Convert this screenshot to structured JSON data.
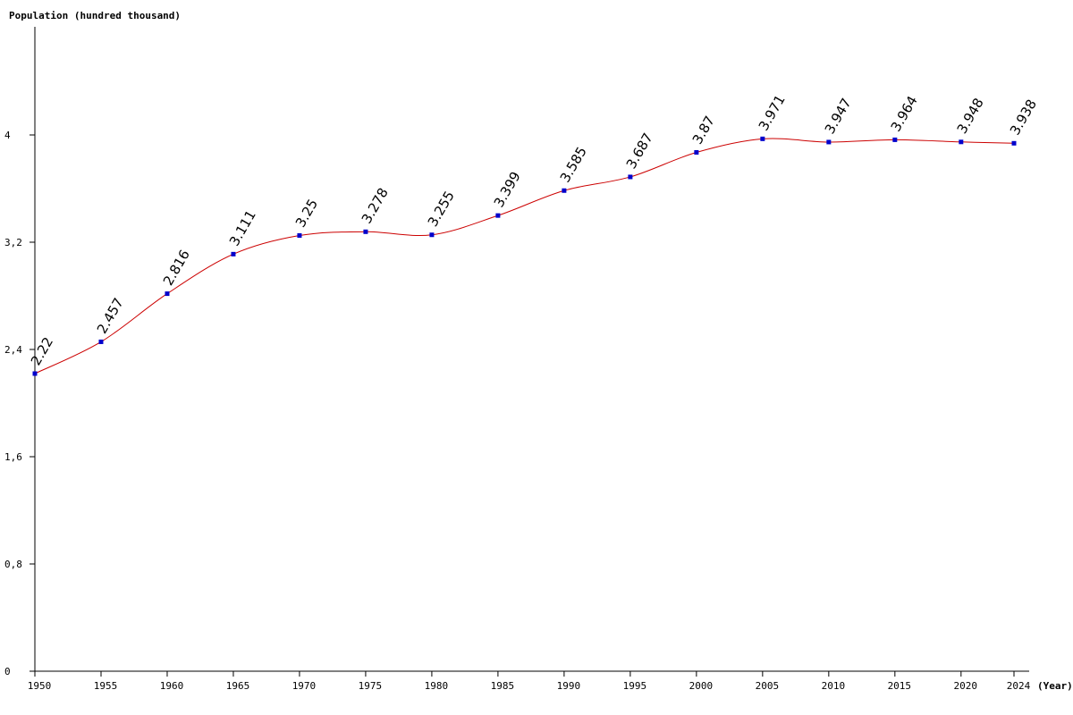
{
  "chart_data": {
    "type": "line",
    "title": "",
    "ylabel": "Population (hundred thousand)",
    "xlabel": "(Year)",
    "x": [
      1950,
      1955,
      1960,
      1965,
      1970,
      1975,
      1980,
      1985,
      1990,
      1995,
      2000,
      2005,
      2010,
      2015,
      2020,
      2024
    ],
    "series": [
      {
        "values": [
          2.22,
          2.457,
          2.816,
          3.111,
          3.25,
          3.278,
          3.255,
          3.399,
          3.585,
          3.687,
          3.87,
          3.971,
          3.947,
          3.964,
          3.948,
          3.938
        ]
      }
    ],
    "data_labels": [
      "2.22",
      "2.457",
      "2.816",
      "3.111",
      "3.25",
      "3.278",
      "3.255",
      "3.399",
      "3.585",
      "3.687",
      "3.87",
      "3.971",
      "3.947",
      "3.964",
      "3.948",
      "3.938"
    ],
    "x_tick_labels": [
      "1950",
      "1955",
      "1960",
      "1965",
      "1970",
      "1975",
      "1980",
      "1985",
      "1990",
      "1995",
      "2000",
      "2005",
      "2010",
      "2015",
      "2020",
      "2024"
    ],
    "y_ticks": [
      0,
      0.8,
      1.6,
      2.4,
      3.2,
      4
    ],
    "y_tick_labels": [
      "0",
      "0,8",
      "1,6",
      "2,4",
      "3,2",
      "4"
    ],
    "xlim": [
      1950,
      2024
    ],
    "ylim": [
      0,
      4.8
    ],
    "grid": false,
    "legend": "none",
    "colors": {
      "line": "#cc0000",
      "marker": "#0000cc",
      "axis": "#000000"
    }
  }
}
